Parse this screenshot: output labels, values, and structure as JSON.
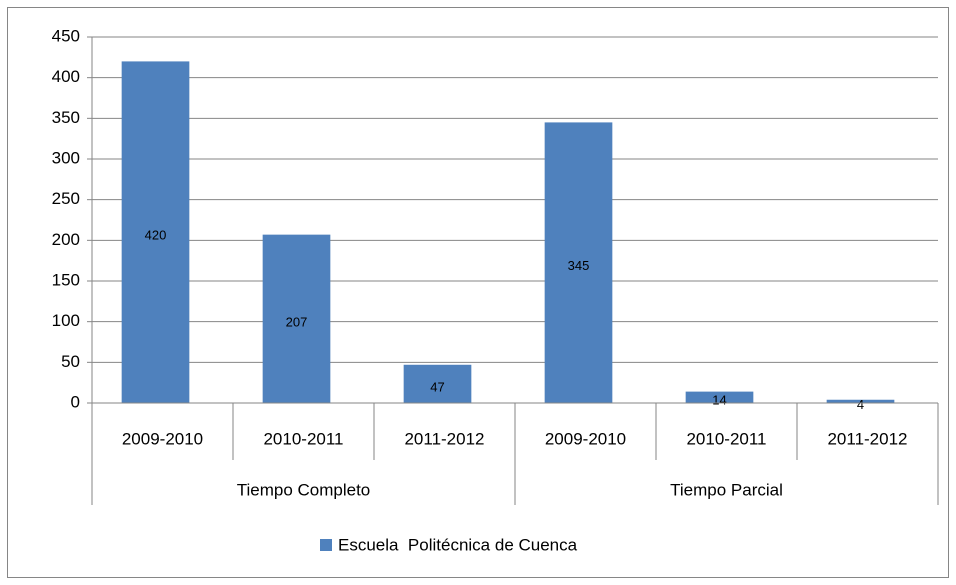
{
  "chart_data": {
    "type": "bar",
    "categories": [
      "2009-2010",
      "2010-2011",
      "2011-2012",
      "2009-2010",
      "2010-2011",
      "2011-2012"
    ],
    "groups": [
      "Tiempo Completo",
      "Tiempo Parcial"
    ],
    "series": [
      {
        "name": "Escuela  Politécnica de Cuenca",
        "color": "#4f81bd",
        "values": [
          420,
          207,
          47,
          345,
          14,
          4
        ]
      }
    ],
    "ylim": [
      0,
      450
    ],
    "yticks": [
      0,
      50,
      100,
      150,
      200,
      250,
      300,
      350,
      400,
      450
    ],
    "grid": true,
    "legend": "bottom"
  }
}
